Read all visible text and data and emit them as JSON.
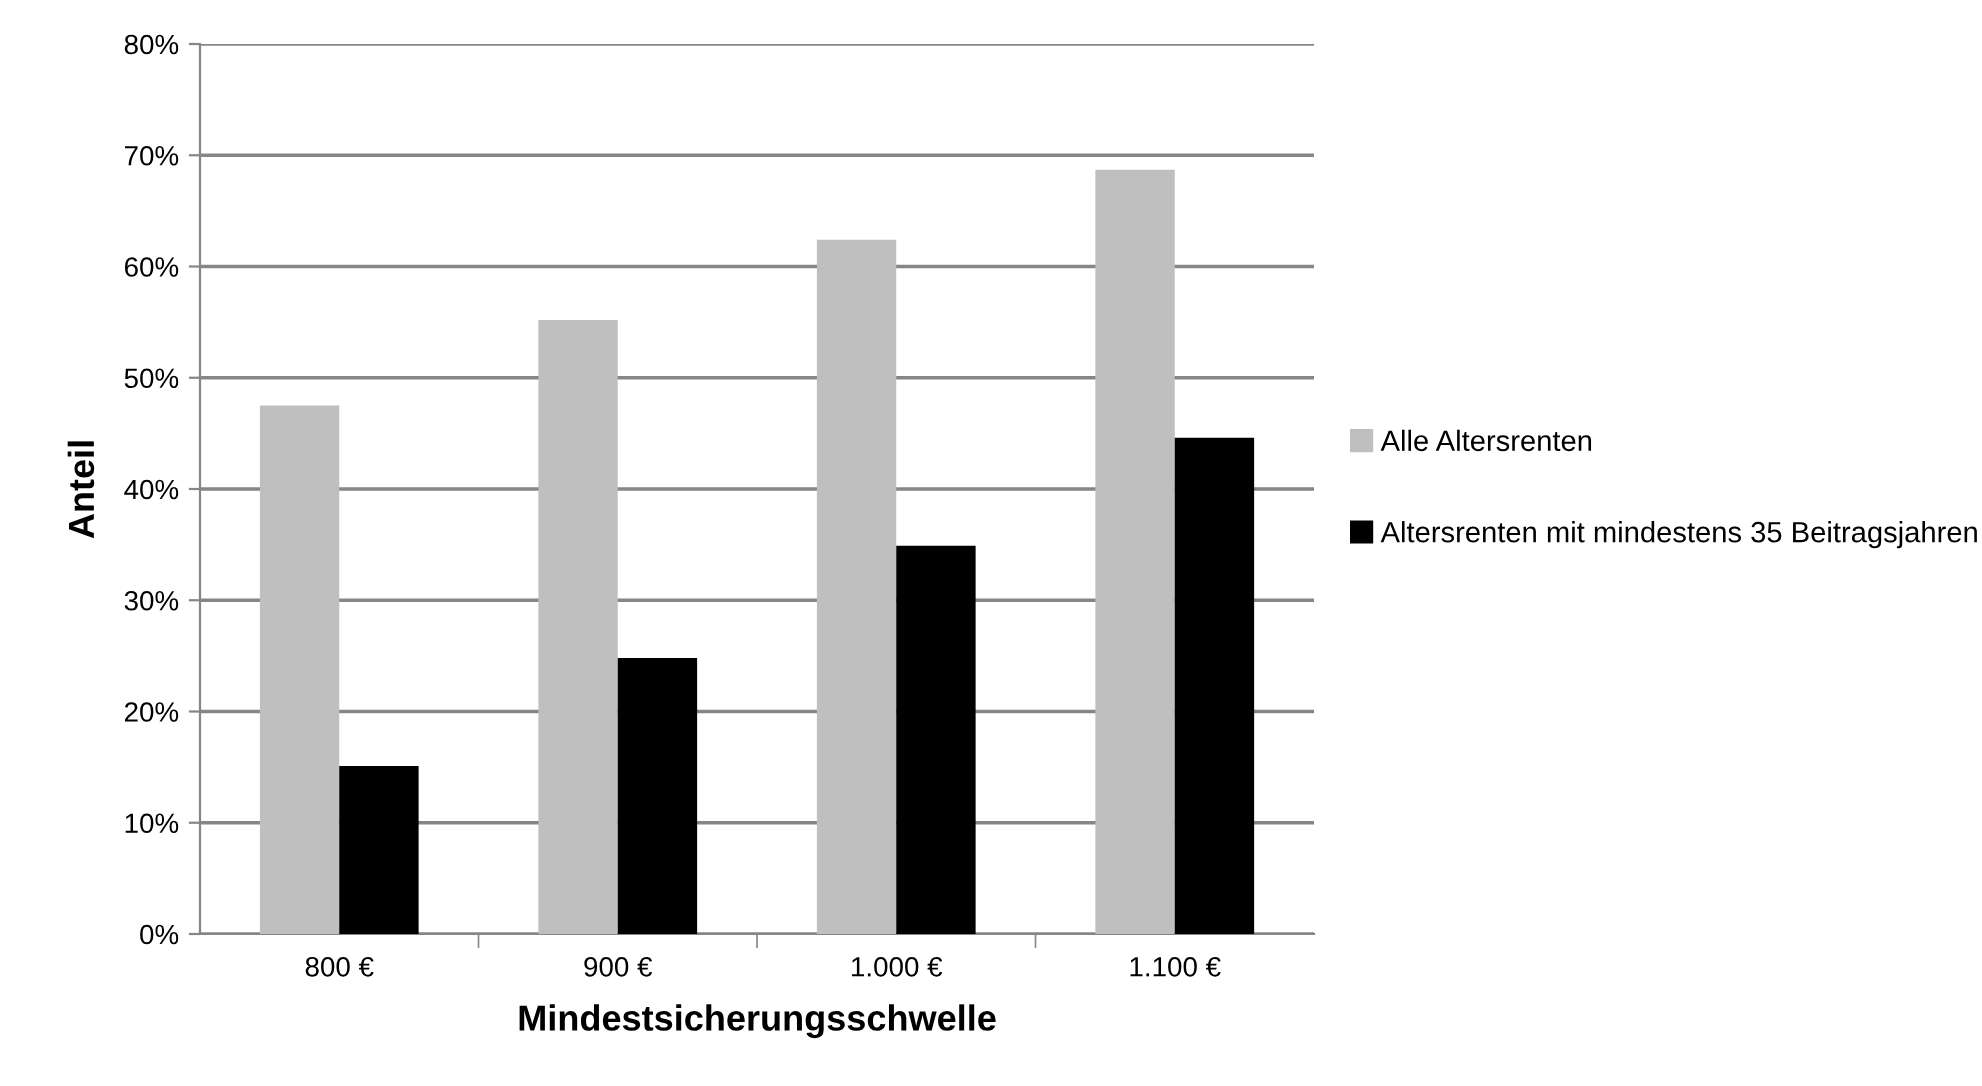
{
  "chart_data": {
    "type": "bar",
    "xlabel": "Mindestsicherungsschwelle",
    "ylabel": "Anteil",
    "categories": [
      "800 €",
      "900 €",
      "1.000 €",
      "1.100 €"
    ],
    "series": [
      {
        "name": "Alle Altersrenten",
        "color": "#bfbfbf",
        "values": [
          47.5,
          55.2,
          62.4,
          68.7
        ]
      },
      {
        "name": "Altersrenten mit mindestens 35 Beitragsjahren",
        "color": "#000000",
        "values": [
          15.1,
          24.8,
          34.9,
          44.6
        ]
      }
    ],
    "ylim": [
      0,
      80
    ],
    "yticks": [
      {
        "value": 0,
        "label": "0%"
      },
      {
        "value": 10,
        "label": "10%"
      },
      {
        "value": 20,
        "label": "20%"
      },
      {
        "value": 30,
        "label": "30%"
      },
      {
        "value": 40,
        "label": "40%"
      },
      {
        "value": 50,
        "label": "50%"
      },
      {
        "value": 60,
        "label": "60%"
      },
      {
        "value": 70,
        "label": "70%"
      },
      {
        "value": 80,
        "label": "80%"
      }
    ],
    "grid": "y",
    "legend": "right"
  }
}
